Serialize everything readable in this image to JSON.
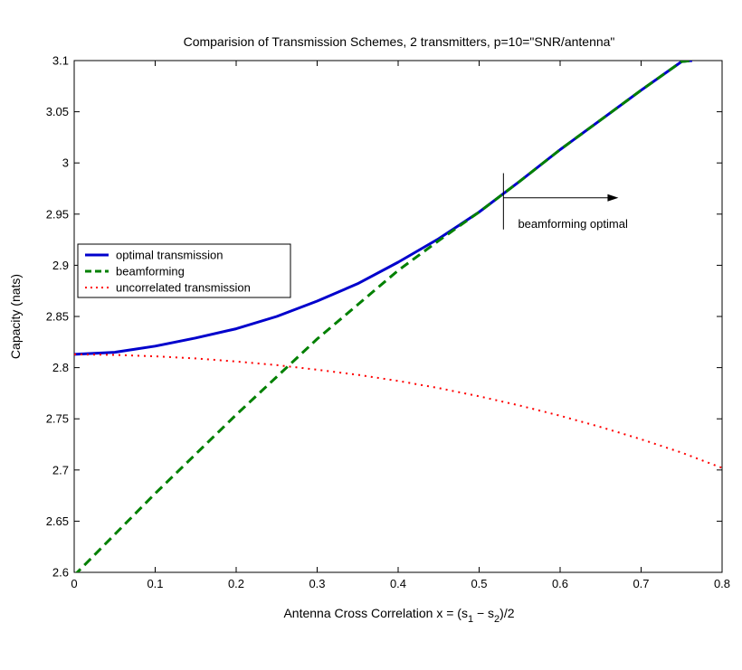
{
  "chart_data": {
    "type": "line",
    "title": "Comparision of Transmission Schemes, 2 transmitters,  p=10=\"SNR/antenna\"",
    "xlabel_parts": [
      "Antenna Cross Correlation x = (s",
      "1",
      " − s",
      "2",
      ")/2"
    ],
    "ylabel": "Capacity (nats)",
    "xlim": [
      0,
      0.8
    ],
    "ylim": [
      2.6,
      3.1
    ],
    "x_ticks": [
      0,
      0.1,
      0.2,
      0.3,
      0.4,
      0.5,
      0.6,
      0.7,
      0.8
    ],
    "x_tick_labels": [
      "0",
      "0.1",
      "0.2",
      "0.3",
      "0.4",
      "0.5",
      "0.6",
      "0.7",
      "0.8"
    ],
    "y_ticks": [
      2.6,
      2.65,
      2.7,
      2.75,
      2.8,
      2.85,
      2.9,
      2.95,
      3.0,
      3.05,
      3.1
    ],
    "y_tick_labels": [
      "2.6",
      "2.65",
      "2.7",
      "2.75",
      "2.8",
      "2.85",
      "2.9",
      "2.95",
      "3",
      "3.05",
      "3.1"
    ],
    "grid": false,
    "legend_position": "center-left",
    "series": [
      {
        "name": "optimal transmission",
        "color": "#0000cc",
        "style": "solid",
        "x": [
          0,
          0.05,
          0.1,
          0.15,
          0.2,
          0.25,
          0.3,
          0.35,
          0.4,
          0.45,
          0.5,
          0.53,
          0.55,
          0.6,
          0.65,
          0.7,
          0.75,
          0.763
        ],
        "y": [
          2.813,
          2.815,
          2.821,
          2.829,
          2.838,
          2.85,
          2.865,
          2.882,
          2.903,
          2.926,
          2.952,
          2.97,
          2.982,
          3.013,
          3.042,
          3.071,
          3.099,
          3.1
        ]
      },
      {
        "name": "beamforming",
        "color": "#008000",
        "style": "dashed",
        "x": [
          0,
          0.1,
          0.2,
          0.3,
          0.4,
          0.45,
          0.5,
          0.53,
          0.55,
          0.6,
          0.65,
          0.7,
          0.75,
          0.763
        ],
        "y": [
          2.597,
          2.677,
          2.754,
          2.828,
          2.895,
          2.924,
          2.952,
          2.97,
          2.982,
          3.013,
          3.042,
          3.071,
          3.099,
          3.1
        ]
      },
      {
        "name": "uncorrelated transmission",
        "color": "#ff0000",
        "style": "dotted",
        "x": [
          0,
          0.05,
          0.1,
          0.15,
          0.2,
          0.25,
          0.3,
          0.35,
          0.4,
          0.45,
          0.5,
          0.55,
          0.6,
          0.65,
          0.7,
          0.75,
          0.8
        ],
        "y": [
          2.813,
          2.8125,
          2.811,
          2.809,
          2.806,
          2.8025,
          2.798,
          2.793,
          2.787,
          2.78,
          2.772,
          2.763,
          2.753,
          2.742,
          2.73,
          2.717,
          2.702
        ]
      }
    ],
    "annotation": {
      "text": "beamforming optimal",
      "marker_x": 0.53,
      "marker_y_range": [
        2.935,
        2.99
      ],
      "arrow_from": [
        0.53,
        2.966
      ],
      "arrow_to": [
        0.672,
        2.966
      ],
      "text_at": [
        0.548,
        2.94
      ]
    }
  }
}
